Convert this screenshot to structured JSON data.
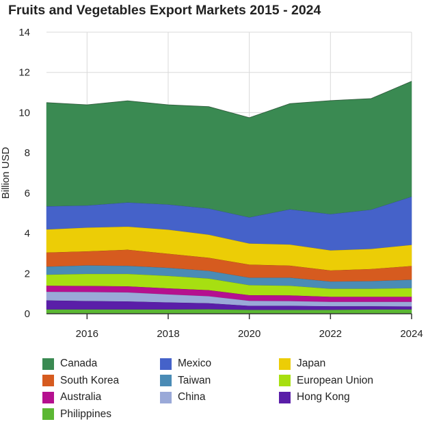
{
  "chart_data": {
    "type": "area",
    "stacked": true,
    "title": "Fruits and Vegetables Export Markets 2015 - 2024",
    "xlabel": "",
    "ylabel": "Billion USD",
    "x": [
      2015,
      2016,
      2017,
      2018,
      2019,
      2020,
      2021,
      2022,
      2023,
      2024
    ],
    "xticks": [
      "2016",
      "2018",
      "2020",
      "2022",
      "2024"
    ],
    "ylim": [
      0,
      14
    ],
    "yticks": [
      "0",
      "2",
      "4",
      "6",
      "8",
      "10",
      "12",
      "14"
    ],
    "grid": true,
    "legend_position": "bottom",
    "series": [
      {
        "name": "Philippines",
        "color": "#5bb733",
        "values": [
          0.22,
          0.22,
          0.22,
          0.22,
          0.23,
          0.2,
          0.2,
          0.2,
          0.22,
          0.22
        ]
      },
      {
        "name": "Hong Kong",
        "color": "#5a1ea8",
        "values": [
          0.45,
          0.42,
          0.4,
          0.35,
          0.3,
          0.2,
          0.2,
          0.18,
          0.16,
          0.15
        ]
      },
      {
        "name": "China",
        "color": "#9aa9d8",
        "values": [
          0.43,
          0.45,
          0.45,
          0.4,
          0.35,
          0.25,
          0.24,
          0.22,
          0.22,
          0.23
        ]
      },
      {
        "name": "Australia",
        "color": "#b5108f",
        "values": [
          0.3,
          0.3,
          0.3,
          0.3,
          0.3,
          0.28,
          0.28,
          0.25,
          0.25,
          0.25
        ]
      },
      {
        "name": "European Union",
        "color": "#a7df11",
        "values": [
          0.55,
          0.6,
          0.62,
          0.62,
          0.58,
          0.5,
          0.48,
          0.4,
          0.4,
          0.43
        ]
      },
      {
        "name": "Taiwan",
        "color": "#4a8bb5",
        "values": [
          0.4,
          0.42,
          0.4,
          0.4,
          0.38,
          0.37,
          0.4,
          0.36,
          0.38,
          0.42
        ]
      },
      {
        "name": "South Korea",
        "color": "#d65b1f",
        "values": [
          0.7,
          0.7,
          0.8,
          0.7,
          0.65,
          0.65,
          0.6,
          0.55,
          0.6,
          0.68
        ]
      },
      {
        "name": "Japan",
        "color": "#eccd06",
        "values": [
          1.15,
          1.18,
          1.15,
          1.2,
          1.15,
          1.05,
          1.05,
          1.0,
          1.0,
          1.05
        ]
      },
      {
        "name": "Mexico",
        "color": "#4562c9",
        "values": [
          1.15,
          1.1,
          1.2,
          1.25,
          1.3,
          1.3,
          1.75,
          1.8,
          1.95,
          2.4
        ]
      },
      {
        "name": "Canada",
        "color": "#3a8a52",
        "values": [
          5.15,
          5.0,
          5.05,
          4.95,
          5.06,
          4.95,
          5.25,
          5.64,
          5.52,
          5.73
        ]
      }
    ],
    "legend": [
      {
        "name": "Canada",
        "color": "#3a8a52"
      },
      {
        "name": "Mexico",
        "color": "#4562c9"
      },
      {
        "name": "Japan",
        "color": "#eccd06"
      },
      {
        "name": "South Korea",
        "color": "#d65b1f"
      },
      {
        "name": "Taiwan",
        "color": "#4a8bb5"
      },
      {
        "name": "European Union",
        "color": "#a7df11"
      },
      {
        "name": "Australia",
        "color": "#b5108f"
      },
      {
        "name": "China",
        "color": "#9aa9d8"
      },
      {
        "name": "Hong Kong",
        "color": "#5a1ea8"
      },
      {
        "name": "Philippines",
        "color": "#5bb733"
      }
    ]
  }
}
